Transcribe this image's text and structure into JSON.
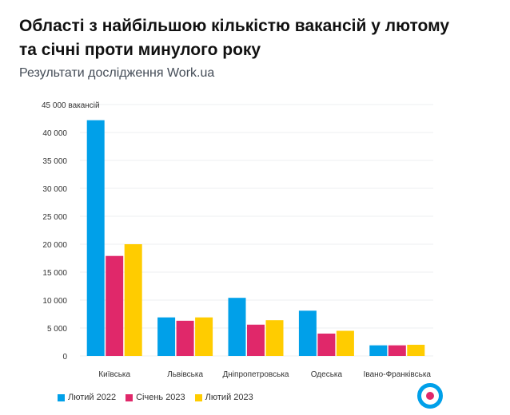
{
  "title": "Області з найбільшою кількістю вакансій у лютому та січні проти минулого року",
  "subtitle": "Результати дослідження Work.ua",
  "chart_data": {
    "type": "bar",
    "categories": [
      "Київська",
      "Львівська",
      "Дніпропетровська",
      "Одеська",
      "Івано-Франківська"
    ],
    "series": [
      {
        "name": "Лютий 2022",
        "color": "#00a0e9",
        "values": [
          42200,
          6900,
          10400,
          8100,
          1900
        ]
      },
      {
        "name": "Січень 2023",
        "color": "#e0286a",
        "values": [
          17900,
          6300,
          5600,
          4000,
          1900
        ]
      },
      {
        "name": "Лютий 2023",
        "color": "#ffcc00",
        "values": [
          20000,
          6900,
          6400,
          4500,
          2000
        ]
      }
    ],
    "ylim": [
      0,
      45000
    ],
    "yticks": [
      "0",
      "5 000",
      "10 000",
      "15 000",
      "20 000",
      "25 000",
      "30 000",
      "35 000",
      "40 000",
      "45 000 вакансій"
    ],
    "grid": true,
    "legend": "bottom-left"
  },
  "logo": "Work.ua logo"
}
